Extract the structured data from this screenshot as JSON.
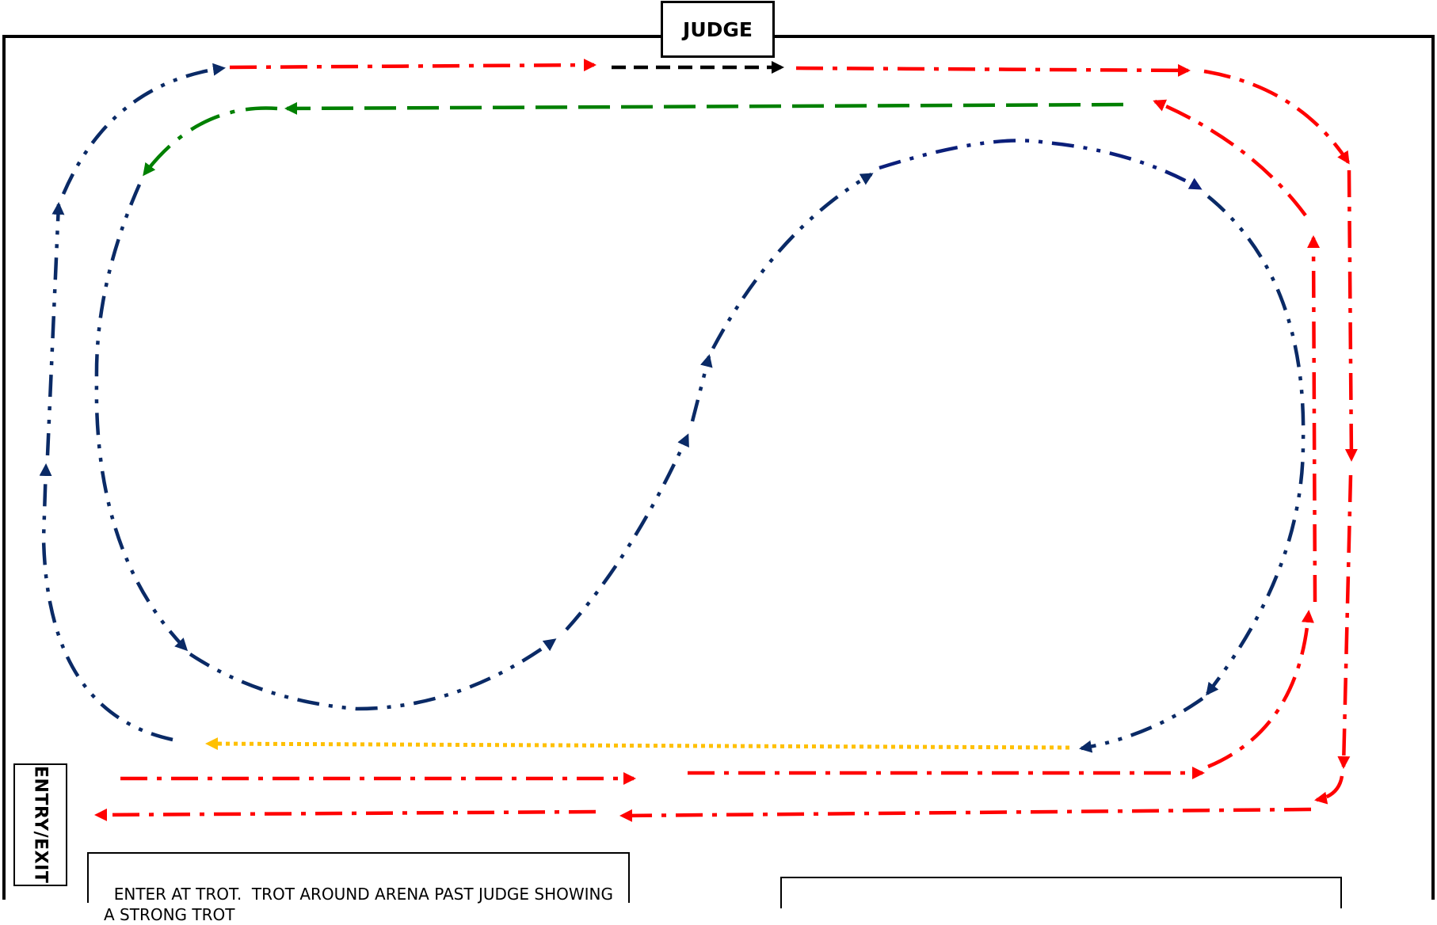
{
  "labels": {
    "judge": "JUDGE",
    "entry_exit": "ENTRY/EXIT",
    "instructions": "ENTER AT TROT.  TROT AROUND ARENA PAST JUDGE SHOWING A STRONG TROT"
  },
  "colors": {
    "arena_border": "#000000",
    "trot_path": "#ff0000",
    "judge_pass": "#000000",
    "return_path": "#008000",
    "figure_eight": "#0a2a66",
    "figure_eight_alt": "#0b1f7a",
    "final_line": "#ffc000"
  },
  "icons": {
    "arrowhead": "arrowhead-icon"
  }
}
